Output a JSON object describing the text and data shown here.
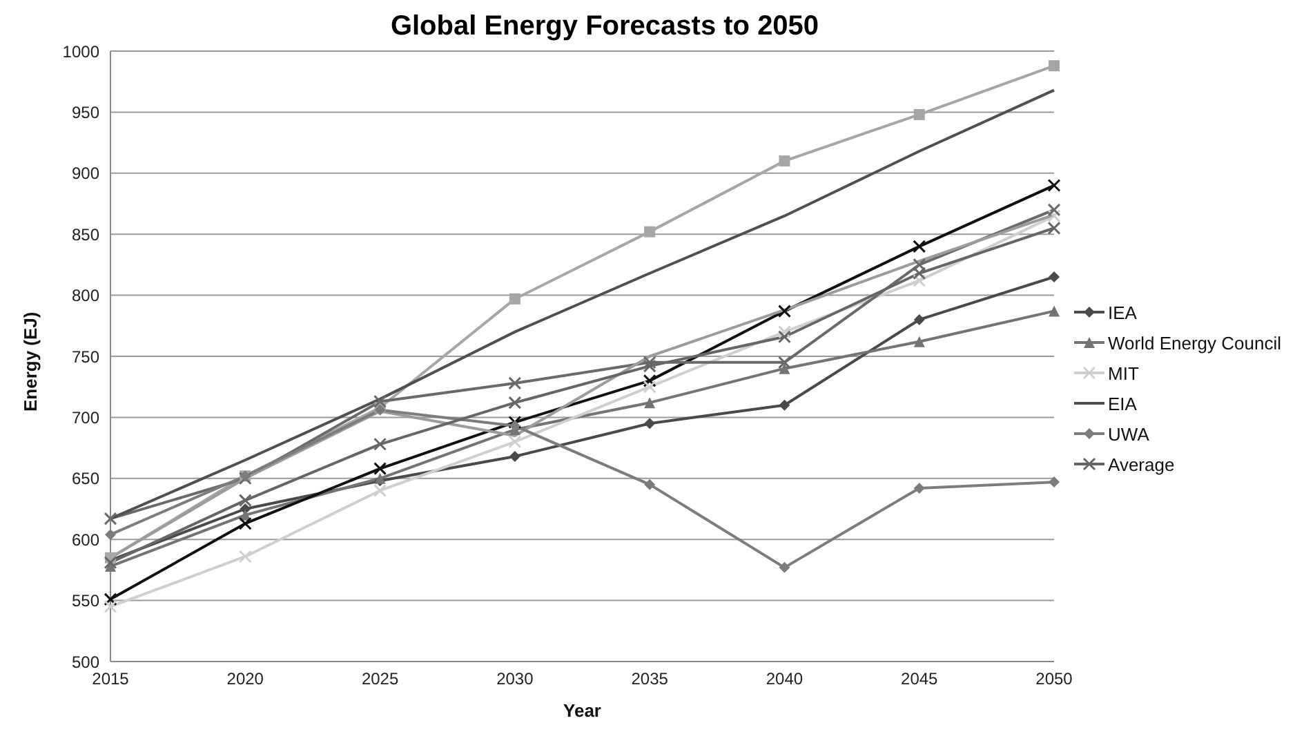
{
  "chart_data": {
    "type": "line",
    "title": "Global Energy Forecasts to 2050",
    "xlabel": "Year",
    "ylabel": "Energy (EJ)",
    "categories": [
      "2015",
      "2020",
      "2025",
      "2030",
      "2035",
      "2040",
      "2045",
      "2050"
    ],
    "series": [
      {
        "name": "IEA",
        "color": "#4a4a4a",
        "marker": "diamond",
        "values": [
          583,
          625,
          648,
          668,
          695,
          710,
          780,
          815
        ]
      },
      {
        "color": "#a6a6a6",
        "marker": "square",
        "values": [
          585,
          652,
          708,
          797,
          852,
          910,
          948,
          988
        ]
      },
      {
        "name": "World Energy Council",
        "color": "#747474",
        "marker": "triangle",
        "values": [
          578,
          620,
          650,
          690,
          712,
          740,
          762,
          787
        ]
      },
      {
        "color": "#111111",
        "marker": "cross",
        "values": [
          551,
          613,
          658,
          696,
          730,
          787,
          840,
          890
        ]
      },
      {
        "name": "MIT",
        "color": "#cfcfcf",
        "marker": "cross",
        "values": [
          545,
          586,
          640,
          680,
          725,
          770,
          812,
          865
        ]
      },
      {
        "color": "#6a6a6a",
        "marker": "cross",
        "values": [
          617,
          650,
          713,
          728,
          745,
          745,
          825,
          870
        ]
      },
      {
        "name": "EIA",
        "color": "#505050",
        "marker": "none",
        "values": [
          617,
          665,
          715,
          770,
          818,
          865,
          918,
          968
        ]
      },
      {
        "color": "#9c9c9c",
        "marker": "none",
        "values": [
          585,
          650,
          705,
          685,
          750,
          788,
          828,
          866
        ]
      },
      {
        "name": "UWA",
        "color": "#7c7c7c",
        "marker": "diamond",
        "values": [
          604,
          652,
          706,
          693,
          645,
          577,
          642,
          647
        ]
      },
      {
        "name": "Average",
        "color": "#666666",
        "marker": "cross",
        "values": [
          581,
          632,
          678,
          712,
          742,
          766,
          818,
          855
        ]
      }
    ],
    "ylim": [
      500,
      1000
    ],
    "yticks": [
      500,
      550,
      600,
      650,
      700,
      750,
      800,
      850,
      900,
      950,
      1000
    ],
    "grid": "y",
    "legend": "right"
  }
}
